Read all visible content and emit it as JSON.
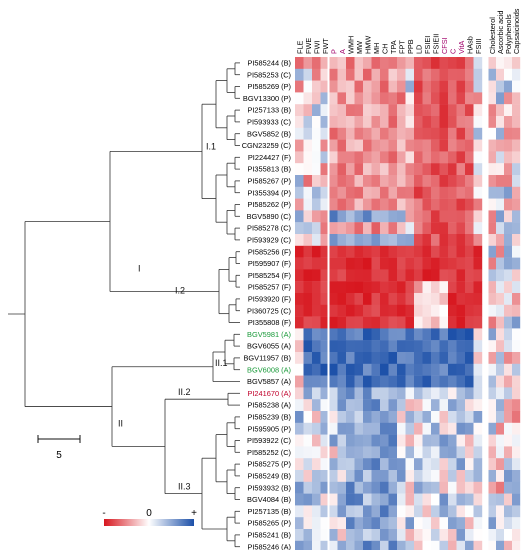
{
  "chart_data": {
    "type": "heatmap",
    "title": "",
    "columns": [
      "FLE",
      "FWE",
      "FWI",
      "FWT",
      "P",
      "A",
      "WMH",
      "MW",
      "HMW",
      "MH",
      "CH",
      "TPA",
      "FPT",
      "PPB",
      "LD",
      "FSIEI",
      "FSIEII",
      "CFSI",
      "C",
      "VitA",
      "HAsb",
      "FSIII",
      "Cholesterol",
      "Ascorbic acid",
      "Polyphenols",
      "Capsaicinoids"
    ],
    "column_colors": [
      "#000000",
      "#000000",
      "#000000",
      "#000000",
      "#a0006a",
      "#a0006a",
      "#000000",
      "#000000",
      "#000000",
      "#000000",
      "#000000",
      "#000000",
      "#000000",
      "#000000",
      "#000000",
      "#000000",
      "#000000",
      "#a0006a",
      "#a0006a",
      "#a0006a",
      "#000000",
      "#000000",
      "#000000",
      "#000000",
      "#000000",
      "#000000"
    ],
    "rows": [
      "PI585244 (B)",
      "PI585253 (C)",
      "PI585269 (P)",
      "BGV13300 (P)",
      "PI257133 (B)",
      "PI593933 (C)",
      "BGV5852 (B)",
      "CGN23259 (C)",
      "PI224427 (F)",
      "PI355813 (B)",
      "PI585267 (P)",
      "PI355394 (P)",
      "PI585262 (P)",
      "BGV5890 (C)",
      "PI585278 (C)",
      "PI593929 (C)",
      "PI585256 (F)",
      "PI595907 (F)",
      "PI585254 (F)",
      "PI585257 (F)",
      "PI593920 (F)",
      "PI360725 (C)",
      "PI355808 (F)",
      "BGV5981 (A)",
      "BGV6055 (A)",
      "BGV11957 (B)",
      "BGV6008 (A)",
      "BGV5857 (A)",
      "PI241670 (A)",
      "PI585238 (A)",
      "PI585239 (B)",
      "PI595905 (P)",
      "PI593922 (C)",
      "PI585252 (C)",
      "PI585275 (P)",
      "PI585249 (B)",
      "PI593932 (B)",
      "BGV4084 (B)",
      "PI257135 (B)",
      "PI585265 (P)",
      "PI585241 (B)",
      "PI585246 (A)"
    ],
    "row_colors": [
      "#000000",
      "#000000",
      "#000000",
      "#000000",
      "#000000",
      "#000000",
      "#000000",
      "#000000",
      "#000000",
      "#000000",
      "#000000",
      "#000000",
      "#000000",
      "#000000",
      "#000000",
      "#000000",
      "#000000",
      "#000000",
      "#000000",
      "#000000",
      "#000000",
      "#000000",
      "#000000",
      "#1a9a3a",
      "#000000",
      "#000000",
      "#1a9a3a",
      "#000000",
      "#c0002a",
      "#000000",
      "#000000",
      "#000000",
      "#000000",
      "#000000",
      "#000000",
      "#000000",
      "#000000",
      "#000000",
      "#000000",
      "#000000",
      "#000000",
      "#000000"
    ],
    "clusters": [
      {
        "label": "I",
        "rows": [
          0,
          22
        ]
      },
      {
        "label": "I.1",
        "rows": [
          0,
          15
        ]
      },
      {
        "label": "I.2",
        "rows": [
          16,
          22
        ]
      },
      {
        "label": "II",
        "rows": [
          23,
          41
        ]
      },
      {
        "label": "II.1",
        "rows": [
          23,
          27
        ]
      },
      {
        "label": "II.2",
        "rows": [
          28,
          29
        ]
      },
      {
        "label": "II.3",
        "rows": [
          30,
          41
        ]
      }
    ],
    "scale_bar": "5",
    "color_scale": {
      "min_label": "-",
      "mid_label": "0",
      "max_label": "+",
      "low_color": "#d7161e",
      "mid_color": "#ffffff",
      "high_color": "#1b4fa8"
    },
    "value_range": [
      -1,
      1
    ]
  }
}
